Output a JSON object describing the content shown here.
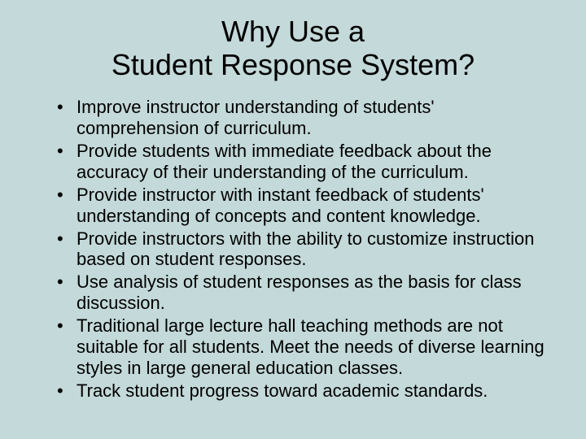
{
  "background_color": "#c4d9d9",
  "text_color": "#000000",
  "title": {
    "line1": "Why Use a",
    "line2": "Student Response System?",
    "fontsize": 36,
    "align": "center"
  },
  "bullets": {
    "fontsize": 22,
    "items": [
      "Improve instructor understanding of students' comprehension of curriculum.",
      "Provide students with immediate feedback about the accuracy of their understanding of the curriculum.",
      "Provide instructor with instant feedback of students' understanding of concepts and content knowledge.",
      "Provide instructors with the ability to customize instruction based on student responses.",
      "Use analysis of student responses as the basis for class discussion.",
      "Traditional large lecture hall teaching methods are not suitable for all students. Meet the needs of diverse learning styles in large general education classes.",
      "Track student progress toward academic standards."
    ]
  }
}
